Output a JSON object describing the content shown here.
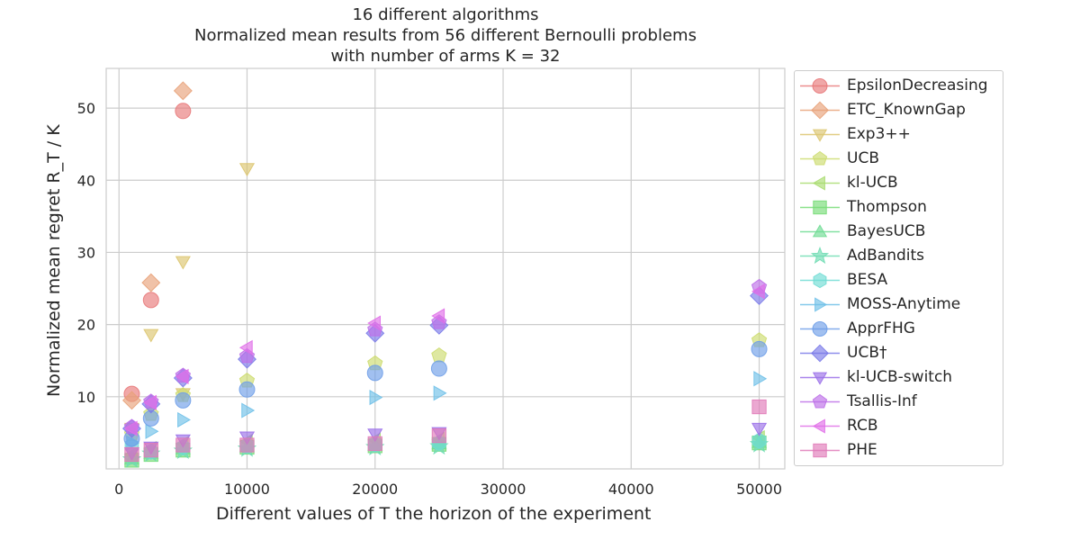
{
  "chart_data": {
    "type": "scatter",
    "title_lines": [
      "16 different algorithms",
      "Normalized mean results from 56 different Bernoulli problems",
      "with number of arms K = 32"
    ],
    "xlabel": "Different values of T the horizon of the experiment",
    "ylabel": "Normalized mean regret R_T / K",
    "xlim": [
      -1000,
      52000
    ],
    "ylim": [
      0,
      55.5
    ],
    "xticks": [
      0,
      10000,
      20000,
      30000,
      40000,
      50000
    ],
    "yticks": [
      10,
      20,
      30,
      40,
      50
    ],
    "grid": true,
    "legend_position": "right, outside",
    "series": [
      {
        "name": "EpsilonDecreasing",
        "color": "#e8797a",
        "marker": "circle",
        "x": [
          1000,
          2500,
          5000
        ],
        "y": [
          10.4,
          23.4,
          49.6
        ]
      },
      {
        "name": "ETC_KnownGap",
        "color": "#e8a279",
        "marker": "diamond",
        "x": [
          1000,
          2500,
          5000
        ],
        "y": [
          9.5,
          25.8,
          52.4
        ]
      },
      {
        "name": "Exp3++",
        "color": "#dcc56f",
        "marker": "triangle-down",
        "x": [
          1000,
          2500,
          5000,
          5000,
          10000
        ],
        "y": [
          5.6,
          18.6,
          10.4,
          28.7,
          41.6
        ]
      },
      {
        "name": "UCB",
        "color": "#cddc6f",
        "marker": "pentagon",
        "x": [
          1000,
          2500,
          5000,
          10000,
          20000,
          25000,
          50000
        ],
        "y": [
          4.8,
          7.6,
          10.2,
          12.2,
          14.6,
          15.7,
          17.8
        ]
      },
      {
        "name": "kl-UCB",
        "color": "#a9dc6f",
        "marker": "triangle-left",
        "x": [
          1000,
          2500,
          5000,
          10000,
          20000,
          25000,
          50000
        ],
        "y": [
          2.0,
          2.8,
          3.5,
          3.8,
          4.0,
          4.1,
          4.3
        ]
      },
      {
        "name": "Thompson",
        "color": "#76dc76",
        "marker": "square",
        "x": [
          1000,
          2500,
          5000,
          10000,
          20000,
          25000,
          50000
        ],
        "y": [
          1.2,
          2.0,
          2.6,
          3.0,
          3.2,
          3.4,
          3.6
        ]
      },
      {
        "name": "BayesUCB",
        "color": "#6fdc93",
        "marker": "triangle-up",
        "x": [
          1000,
          2500,
          5000,
          10000,
          20000,
          25000,
          50000
        ],
        "y": [
          1.4,
          2.2,
          2.8,
          3.1,
          3.3,
          3.5,
          3.7
        ]
      },
      {
        "name": "AdBandits",
        "color": "#6fdcb2",
        "marker": "star",
        "x": [
          1000,
          2500,
          5000,
          10000,
          20000,
          25000,
          50000
        ],
        "y": [
          1.3,
          2.1,
          2.5,
          2.8,
          3.0,
          3.1,
          3.4
        ]
      },
      {
        "name": "BESA",
        "color": "#6fdcd4",
        "marker": "hexagon",
        "x": [
          1000,
          2500,
          5000,
          10000,
          20000,
          25000,
          50000
        ],
        "y": [
          3.2,
          2.4,
          3.0,
          3.2,
          3.4,
          3.6,
          3.9
        ]
      },
      {
        "name": "MOSS-Anytime",
        "color": "#6fc0e8",
        "marker": "triangle-right",
        "x": [
          1000,
          2500,
          5000,
          10000,
          20000,
          25000,
          50000
        ],
        "y": [
          3.6,
          5.2,
          6.8,
          8.1,
          9.9,
          10.5,
          12.5
        ]
      },
      {
        "name": "ApprFHG",
        "color": "#6f9ee8",
        "marker": "circle",
        "x": [
          1000,
          2500,
          5000,
          10000,
          20000,
          25000,
          50000
        ],
        "y": [
          4.2,
          7.0,
          9.5,
          11.0,
          13.3,
          13.9,
          16.6
        ]
      },
      {
        "name": "UCB†",
        "color": "#7a7ae8",
        "marker": "diamond",
        "x": [
          1000,
          2500,
          5000,
          10000,
          20000,
          25000,
          50000
        ],
        "y": [
          5.6,
          9.0,
          12.6,
          15.2,
          18.8,
          19.9,
          24.0
        ]
      },
      {
        "name": "kl-UCB-switch",
        "color": "#9a6fe8",
        "marker": "triangle-down",
        "x": [
          1000,
          2500,
          5000,
          10000,
          20000,
          25000,
          50000
        ],
        "y": [
          2.2,
          3.0,
          4.0,
          4.4,
          4.8,
          5.0,
          5.6
        ]
      },
      {
        "name": "Tsallis-Inf",
        "color": "#bd6fe8",
        "marker": "pentagon",
        "x": [
          1000,
          2500,
          5000,
          10000,
          20000,
          25000,
          50000
        ],
        "y": [
          5.8,
          9.3,
          12.9,
          15.6,
          19.3,
          20.3,
          25.2
        ]
      },
      {
        "name": "RCB",
        "color": "#e06fe8",
        "marker": "triangle-left",
        "x": [
          1000,
          2500,
          5000,
          10000,
          20000,
          25000,
          50000
        ],
        "y": [
          5.6,
          9.2,
          12.8,
          16.8,
          20.2,
          21.2,
          24.6
        ]
      },
      {
        "name": "PHE",
        "color": "#e07ab8",
        "marker": "square",
        "x": [
          1000,
          2500,
          5000,
          10000,
          20000,
          25000,
          50000
        ],
        "y": [
          2.0,
          2.6,
          3.3,
          3.3,
          3.5,
          4.6,
          8.6
        ]
      }
    ]
  }
}
